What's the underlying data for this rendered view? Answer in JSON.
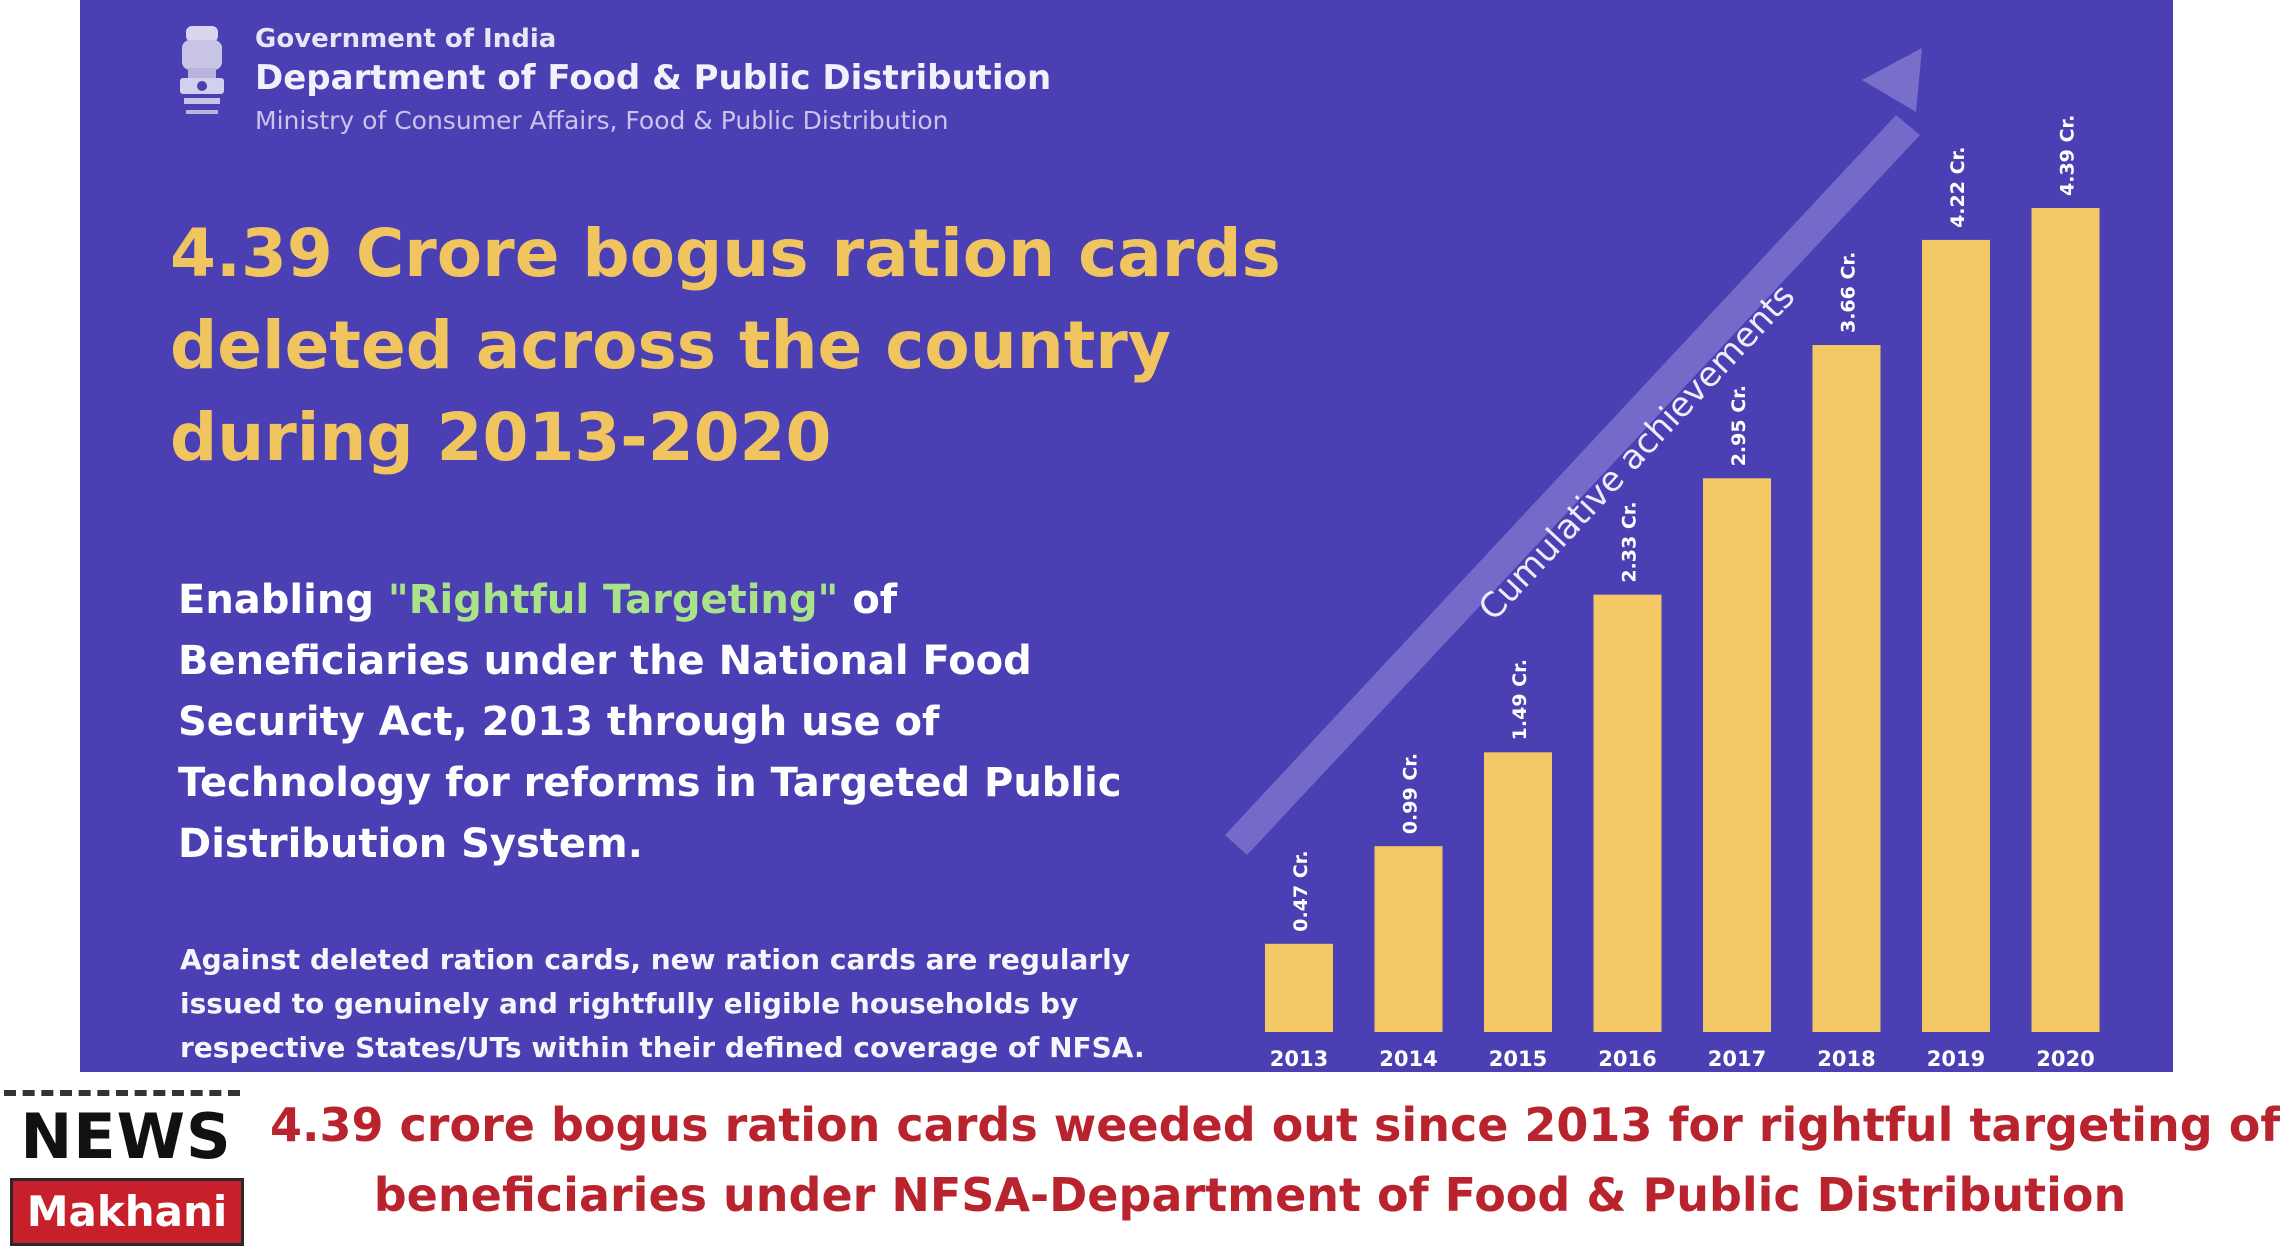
{
  "header": {
    "government": "Government of India",
    "department": "Department of Food & Public Distribution",
    "ministry": "Ministry of  Consumer Affairs, Food & Public Distribution"
  },
  "headline": {
    "lines": [
      "4.39 Crore bogus ration cards",
      "deleted across the country",
      "during 2013-2020"
    ]
  },
  "subhead": {
    "prefix": "Enabling ",
    "highlight": "\"Rightful Targeting\"",
    "suffix": " of",
    "lines": [
      "Beneficiaries under the National Food",
      "Security Act, 2013 through use of",
      "Technology for reforms in Targeted Public",
      "Distribution System."
    ]
  },
  "note": {
    "lines": [
      "Against deleted ration cards, new ration cards are regularly",
      "issued to genuinely and rightfully eligible households by",
      "respective States/UTs within their defined coverage of NFSA."
    ]
  },
  "arrow_label": "Cumulative achievements",
  "chart_data": {
    "type": "bar",
    "categories": [
      "2013",
      "2014",
      "2015",
      "2016",
      "2017",
      "2018",
      "2019",
      "2020"
    ],
    "values": [
      0.47,
      0.99,
      1.49,
      2.33,
      2.95,
      3.66,
      4.22,
      4.39
    ],
    "data_labels": [
      "0.47 Cr.",
      "0.99 Cr.",
      "1.49 Cr.",
      "2.33 Cr.",
      "2.95 Cr.",
      "3.66 Cr.",
      "4.22 Cr.",
      "4.39 Cr."
    ],
    "ylim": [
      0,
      4.39
    ],
    "grid": false,
    "bar_color": "#f3c865",
    "label_color": "#ffffff"
  },
  "news_logo": {
    "top": "NEWS",
    "bottom": "Makhani"
  },
  "caption": {
    "lines": [
      "4.39 crore bogus ration cards weeded out since 2013 for rightful targeting of",
      "beneficiaries under NFSA-Department of Food & Public Distribution"
    ]
  },
  "colors": {
    "panel_bg": "#4a3fb3",
    "headline": "#f0c560",
    "caption": "#b8232d",
    "logo_red": "#c8202a"
  }
}
